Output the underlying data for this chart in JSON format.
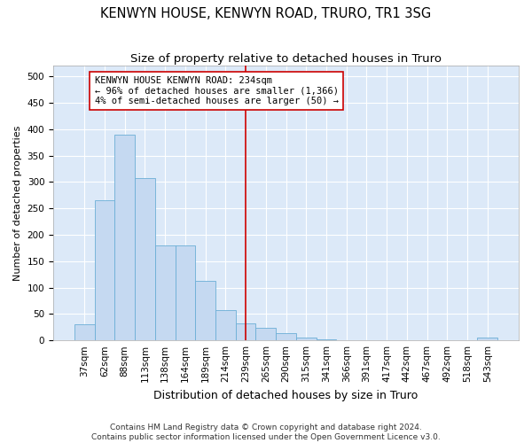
{
  "title": "KENWYN HOUSE, KENWYN ROAD, TRURO, TR1 3SG",
  "subtitle": "Size of property relative to detached houses in Truro",
  "xlabel": "Distribution of detached houses by size in Truro",
  "ylabel": "Number of detached properties",
  "footer_line1": "Contains HM Land Registry data © Crown copyright and database right 2024.",
  "footer_line2": "Contains public sector information licensed under the Open Government Licence v3.0.",
  "bar_labels": [
    "37sqm",
    "62sqm",
    "88sqm",
    "113sqm",
    "138sqm",
    "164sqm",
    "189sqm",
    "214sqm",
    "239sqm",
    "265sqm",
    "290sqm",
    "315sqm",
    "341sqm",
    "366sqm",
    "391sqm",
    "417sqm",
    "442sqm",
    "467sqm",
    "492sqm",
    "518sqm",
    "543sqm"
  ],
  "bar_values": [
    30,
    265,
    390,
    308,
    180,
    180,
    113,
    57,
    32,
    24,
    14,
    6,
    2,
    1,
    1,
    1,
    1,
    1,
    0,
    0,
    5
  ],
  "bar_color": "#c5d9f1",
  "bar_edge_color": "#6baed6",
  "fig_bg_color": "#ffffff",
  "plot_bg_color": "#dce9f8",
  "vline_x": 8,
  "vline_color": "#cc0000",
  "annotation_text": "KENWYN HOUSE KENWYN ROAD: 234sqm\n← 96% of detached houses are smaller (1,366)\n4% of semi-detached houses are larger (50) →",
  "annotation_box_facecolor": "#ffffff",
  "annotation_box_edgecolor": "#cc0000",
  "ylim": [
    0,
    520
  ],
  "yticks": [
    0,
    50,
    100,
    150,
    200,
    250,
    300,
    350,
    400,
    450,
    500
  ],
  "grid_color": "#ffffff",
  "title_fontsize": 10.5,
  "subtitle_fontsize": 9.5,
  "xlabel_fontsize": 9,
  "ylabel_fontsize": 8,
  "tick_fontsize": 7.5,
  "annotation_fontsize": 7.5,
  "footer_fontsize": 6.5
}
